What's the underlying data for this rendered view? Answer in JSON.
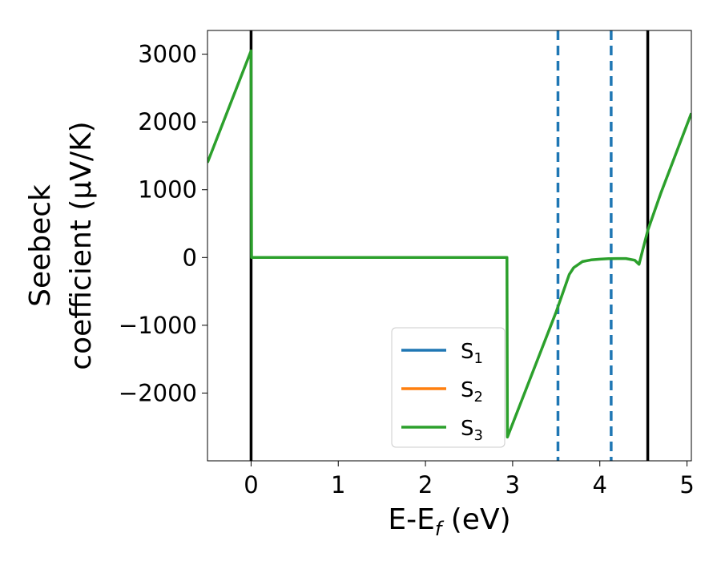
{
  "chart_data": {
    "type": "line",
    "title": "",
    "xlabel": {
      "main": "E-E",
      "sub": "f",
      "unit": " (eV)"
    },
    "ylabel_lines": [
      "Seebeck",
      "coefficient  (μV/K)"
    ],
    "xlim": [
      -0.5,
      5.05
    ],
    "ylim": [
      -3000,
      3350
    ],
    "xticks": [
      0,
      1,
      2,
      3,
      4,
      5
    ],
    "xtick_labels": [
      "0",
      "1",
      "2",
      "3",
      "4",
      "5"
    ],
    "yticks": [
      -2000,
      -1000,
      0,
      1000,
      2000,
      3000
    ],
    "ytick_labels": [
      "−2000",
      "−1000",
      "0",
      "1000",
      "2000",
      "3000"
    ],
    "grid": false,
    "legend_position": "lower-center",
    "vlines": [
      {
        "x": 0.0,
        "style": "solid",
        "color": "#000000"
      },
      {
        "x": 4.55,
        "style": "solid",
        "color": "#000000"
      },
      {
        "x": 3.52,
        "style": "dashed",
        "color": "#1f77b4"
      },
      {
        "x": 4.13,
        "style": "dashed",
        "color": "#1f77b4"
      }
    ],
    "series": [
      {
        "name": "S",
        "sub": "1",
        "color": "#1f77b4",
        "x": [],
        "y": []
      },
      {
        "name": "S",
        "sub": "2",
        "color": "#ff7f0e",
        "x": [],
        "y": []
      },
      {
        "name": "S",
        "sub": "3",
        "color": "#2ca02c",
        "x": [
          -0.5,
          0.0,
          0.005,
          2.93,
          2.935,
          2.94,
          3.5,
          3.65,
          3.7,
          3.8,
          3.9,
          4.0,
          4.1,
          4.2,
          4.3,
          4.4,
          4.45,
          4.55,
          4.7,
          5.05
        ],
        "y": [
          1400,
          3050,
          0,
          0,
          0,
          -2650,
          -800,
          -250,
          -150,
          -60,
          -35,
          -25,
          -18,
          -15,
          -15,
          -40,
          -100,
          400,
          950,
          2130
        ]
      }
    ]
  }
}
